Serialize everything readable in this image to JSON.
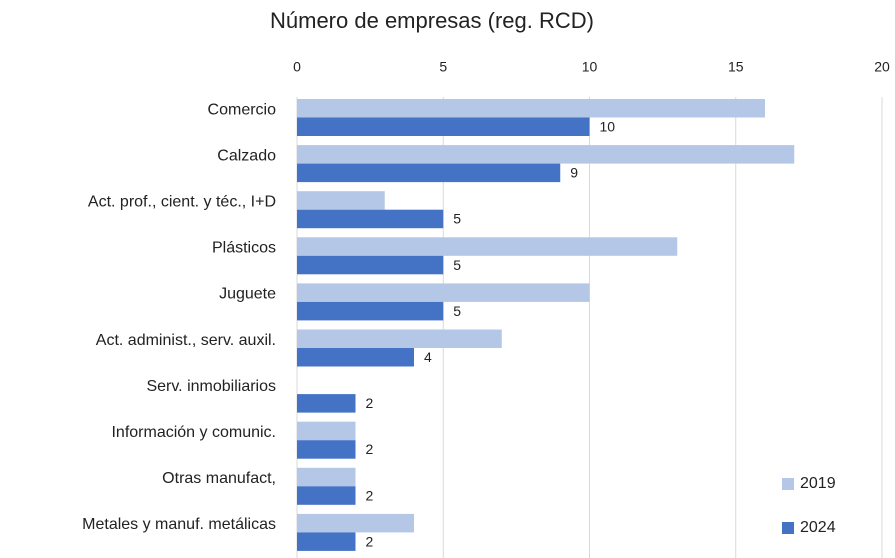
{
  "chart_data": {
    "type": "bar",
    "orientation": "horizontal",
    "title": "Número de empresas (reg. RCD)",
    "categories": [
      "Comercio",
      "Calzado",
      "Act. prof., cient. y téc., I+D",
      "Plásticos",
      "Juguete",
      "Act. administ., serv. auxil.",
      "Serv. inmobiliarios",
      "Información y comunic.",
      "Otras manufact,",
      "Metales y manuf. metálicas"
    ],
    "series": [
      {
        "name": "2019",
        "color": "#b4c7e7",
        "values": [
          16,
          17,
          3,
          13,
          10,
          7,
          0,
          2,
          2,
          4
        ]
      },
      {
        "name": "2024",
        "color": "#4472c4",
        "values": [
          10,
          9,
          5,
          5,
          5,
          4,
          2,
          2,
          2,
          2
        ],
        "data_labels": true
      }
    ],
    "xlim": [
      0,
      20
    ],
    "xticks": [
      0,
      5,
      10,
      15,
      20
    ],
    "grid": true,
    "legend": "lower right"
  }
}
